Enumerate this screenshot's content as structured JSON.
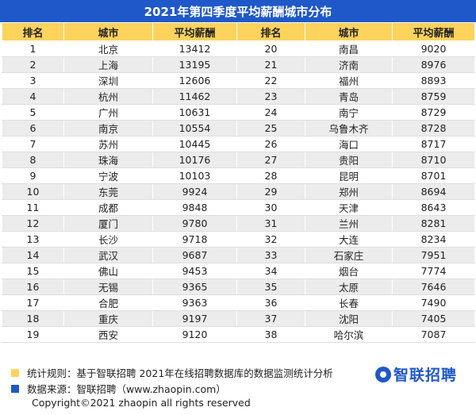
{
  "title": "2021年第四季度平均薪酬城市分布",
  "colors": {
    "header_bg": "#1f58c9",
    "column_header_bg": "#fdd35c",
    "legend_rule": "#fdd35c",
    "legend_source": "#1f58c9"
  },
  "columns": [
    "排名",
    "城市",
    "平均薪酬",
    "排名",
    "城市",
    "平均薪酬"
  ],
  "chart_data": {
    "type": "table",
    "title": "2021年第四季度平均薪酬城市分布",
    "columns": [
      "排名",
      "城市",
      "平均薪酬"
    ],
    "rows": [
      {
        "rank": "1",
        "city": "北京",
        "salary": "13412"
      },
      {
        "rank": "2",
        "city": "上海",
        "salary": "13195"
      },
      {
        "rank": "3",
        "city": "深圳",
        "salary": "12606"
      },
      {
        "rank": "4",
        "city": "杭州",
        "salary": "11462"
      },
      {
        "rank": "5",
        "city": "广州",
        "salary": "10631"
      },
      {
        "rank": "6",
        "city": "南京",
        "salary": "10554"
      },
      {
        "rank": "7",
        "city": "苏州",
        "salary": "10445"
      },
      {
        "rank": "8",
        "city": "珠海",
        "salary": "10176"
      },
      {
        "rank": "9",
        "city": "宁波",
        "salary": "10103"
      },
      {
        "rank": "10",
        "city": "东莞",
        "salary": "9924"
      },
      {
        "rank": "11",
        "city": "成都",
        "salary": "9848"
      },
      {
        "rank": "12",
        "city": "厦门",
        "salary": "9780"
      },
      {
        "rank": "13",
        "city": "长沙",
        "salary": "9718"
      },
      {
        "rank": "14",
        "city": "武汉",
        "salary": "9687"
      },
      {
        "rank": "15",
        "city": "佛山",
        "salary": "9453"
      },
      {
        "rank": "16",
        "city": "无锡",
        "salary": "9365"
      },
      {
        "rank": "17",
        "city": "合肥",
        "salary": "9363"
      },
      {
        "rank": "18",
        "city": "重庆",
        "salary": "9197"
      },
      {
        "rank": "19",
        "city": "西安",
        "salary": "9120"
      },
      {
        "rank": "20",
        "city": "南昌",
        "salary": "9020"
      },
      {
        "rank": "21",
        "city": "济南",
        "salary": "8976"
      },
      {
        "rank": "22",
        "city": "福州",
        "salary": "8893"
      },
      {
        "rank": "23",
        "city": "青岛",
        "salary": "8759"
      },
      {
        "rank": "24",
        "city": "南宁",
        "salary": "8729"
      },
      {
        "rank": "25",
        "city": "乌鲁木齐",
        "salary": "8728"
      },
      {
        "rank": "26",
        "city": "海口",
        "salary": "8717"
      },
      {
        "rank": "27",
        "city": "贵阳",
        "salary": "8710"
      },
      {
        "rank": "28",
        "city": "昆明",
        "salary": "8701"
      },
      {
        "rank": "29",
        "city": "郑州",
        "salary": "8694"
      },
      {
        "rank": "30",
        "city": "天津",
        "salary": "8643"
      },
      {
        "rank": "31",
        "city": "兰州",
        "salary": "8281"
      },
      {
        "rank": "32",
        "city": "大连",
        "salary": "8234"
      },
      {
        "rank": "33",
        "city": "石家庄",
        "salary": "7951"
      },
      {
        "rank": "34",
        "city": "烟台",
        "salary": "7774"
      },
      {
        "rank": "35",
        "city": "太原",
        "salary": "7646"
      },
      {
        "rank": "36",
        "city": "长春",
        "salary": "7490"
      },
      {
        "rank": "37",
        "city": "沈阳",
        "salary": "7405"
      },
      {
        "rank": "38",
        "city": "哈尔滨",
        "salary": "7087"
      }
    ]
  },
  "footer": {
    "rule": "统计规则：基于智联招聘  2021年在线招聘数据库的数据监测统计分析",
    "source": "数据来源：智联招聘（www.zhaopin.com）",
    "copyright": "Copyright©2021 zhaopin all rights reserved",
    "logo_text": "智联招聘"
  }
}
